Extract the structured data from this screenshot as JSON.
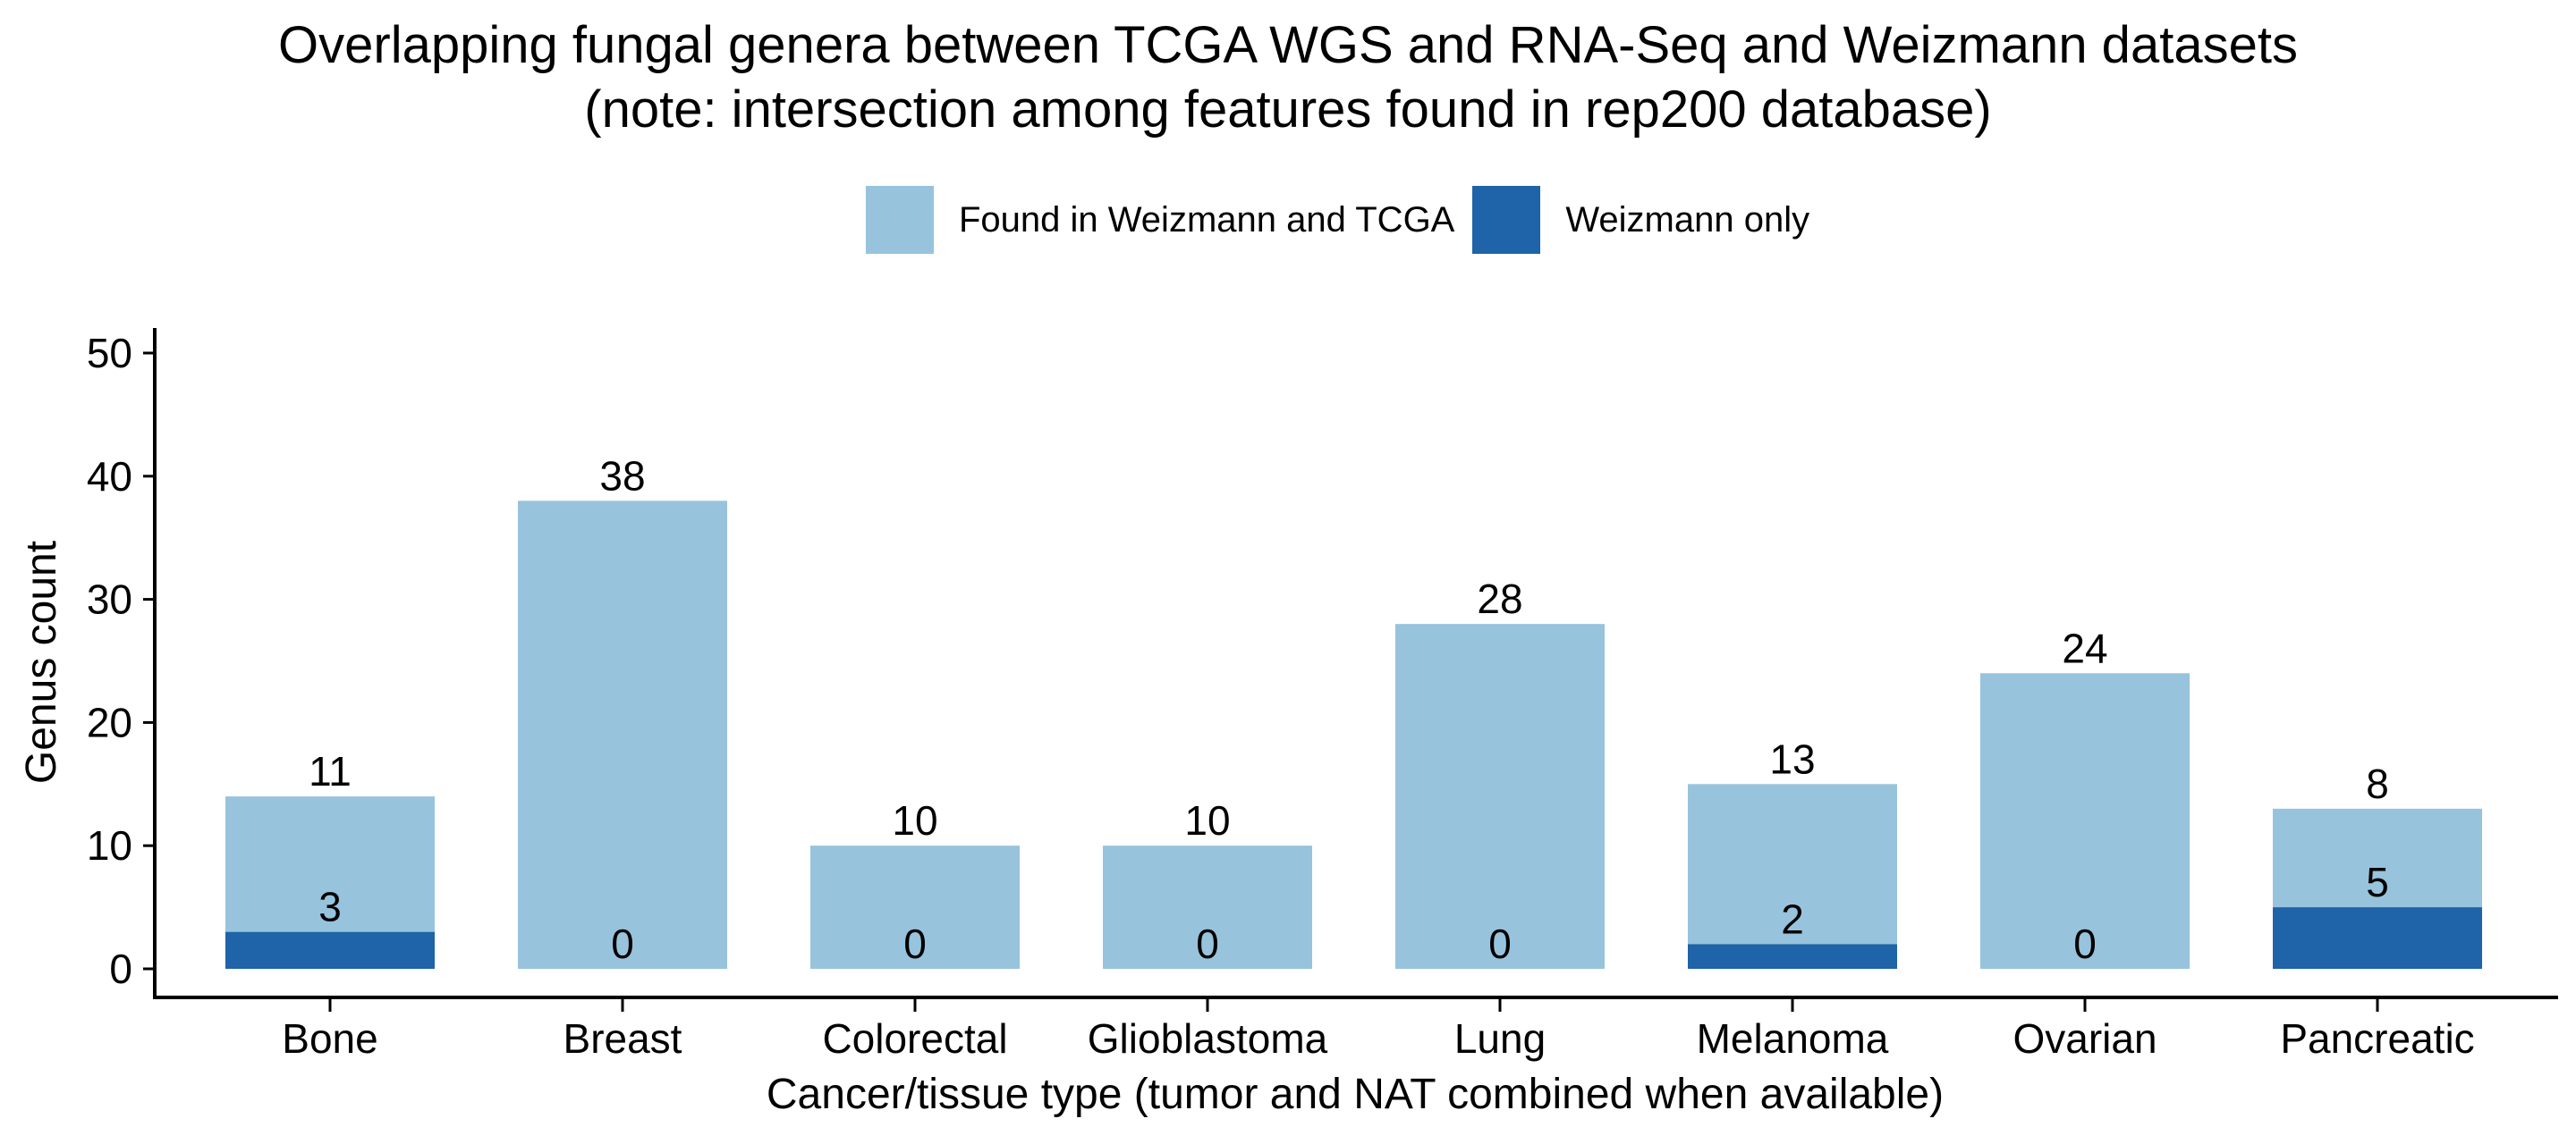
{
  "chart_data": {
    "type": "bar",
    "stacked": true,
    "title": "Overlapping fungal genera between TCGA WGS and RNA-Seq and Weizmann datasets",
    "subtitle": "(note: intersection among features found in rep200 database)",
    "xlabel": "Cancer/tissue type (tumor and NAT combined when available)",
    "ylabel": "Genus count",
    "ylim": [
      0,
      52
    ],
    "yticks": [
      "0",
      "10",
      "20",
      "30",
      "40",
      "50"
    ],
    "grid": false,
    "legend_position": "top",
    "categories": [
      "Bone",
      "Breast",
      "Colorectal",
      "Glioblastoma",
      "Lung",
      "Melanoma",
      "Ovarian",
      "Pancreatic"
    ],
    "series": [
      {
        "name": "Weizmann only",
        "color": "#1f63a8",
        "values": [
          3,
          0,
          0,
          0,
          0,
          2,
          0,
          5
        ]
      },
      {
        "name": "Found in Weizmann and TCGA",
        "color": "#97c3dd",
        "values": [
          11,
          38,
          10,
          10,
          28,
          13,
          24,
          8
        ]
      }
    ]
  }
}
